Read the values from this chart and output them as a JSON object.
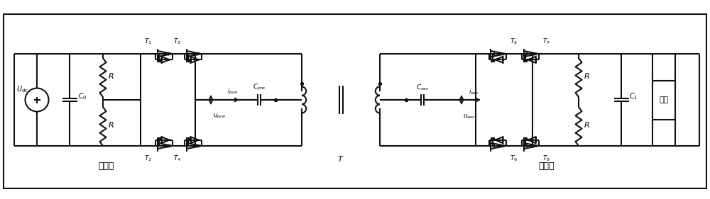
{
  "bg_color": "#ffffff",
  "line_color": "#111111",
  "lw": 1.5,
  "label_Udc": "U_{dc}",
  "label_C0": "C_0",
  "label_C1": "C_1",
  "label_Cpre": "C_{pre}",
  "label_Csec": "C_{sec}",
  "label_ipre": "i_{pre}",
  "label_isec": "i_{sec}",
  "label_upre": "u_{pre}",
  "label_usec": "u_{sec}",
  "label_T": "T",
  "label_T1": "T_1",
  "label_T2": "T_2",
  "label_T3": "T_3",
  "label_T4": "T_4",
  "label_T5": "T_5",
  "label_T6": "T_6",
  "label_T7": "T_7",
  "label_T8": "T_8",
  "label_R": "R",
  "label_load": "负载",
  "label_highside": "高压侧",
  "label_lowside": "低压侧",
  "figsize": [
    10.0,
    2.81
  ],
  "dpi": 100
}
